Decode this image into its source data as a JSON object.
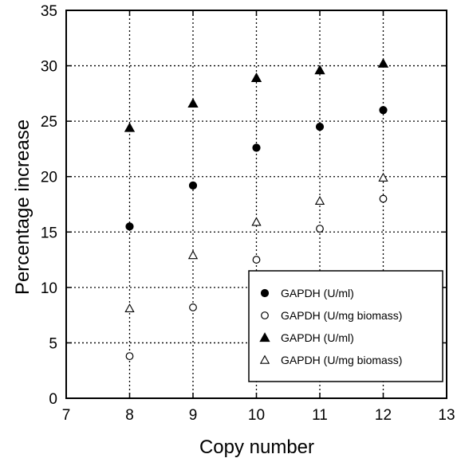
{
  "chart_data": {
    "type": "scatter",
    "title": "",
    "xlabel": "Copy number",
    "ylabel": "Percentage increase",
    "xlim": [
      7,
      13
    ],
    "ylim": [
      0,
      35
    ],
    "xticks": [
      "7",
      "8",
      "9",
      "10",
      "11",
      "12",
      "13"
    ],
    "yticks": [
      "0",
      "5",
      "10",
      "15",
      "20",
      "25",
      "30",
      "35"
    ],
    "grid": true,
    "legend_position": "bottom-right",
    "series": [
      {
        "name": "GAPDH (U/ml)",
        "marker": "filled-circle",
        "color": "#000000",
        "x": [
          8,
          9,
          10,
          11,
          12
        ],
        "y": [
          15.5,
          19.2,
          22.6,
          24.5,
          26.0
        ]
      },
      {
        "name": "GAPDH (U/mg biomass)",
        "marker": "open-circle",
        "color": "#000000",
        "x": [
          8,
          9,
          10,
          11,
          12
        ],
        "y": [
          3.8,
          8.2,
          12.5,
          15.3,
          18.0
        ]
      },
      {
        "name": "GAPDH (U/ml)",
        "marker": "filled-triangle",
        "color": "#000000",
        "x": [
          8,
          9,
          10,
          11,
          12
        ],
        "y": [
          24.4,
          26.6,
          28.9,
          29.6,
          30.2
        ]
      },
      {
        "name": "GAPDH (U/mg biomass)",
        "marker": "open-triangle",
        "color": "#000000",
        "x": [
          8,
          9,
          10,
          11,
          12
        ],
        "y": [
          8.1,
          12.9,
          15.9,
          17.8,
          19.9
        ]
      }
    ]
  }
}
